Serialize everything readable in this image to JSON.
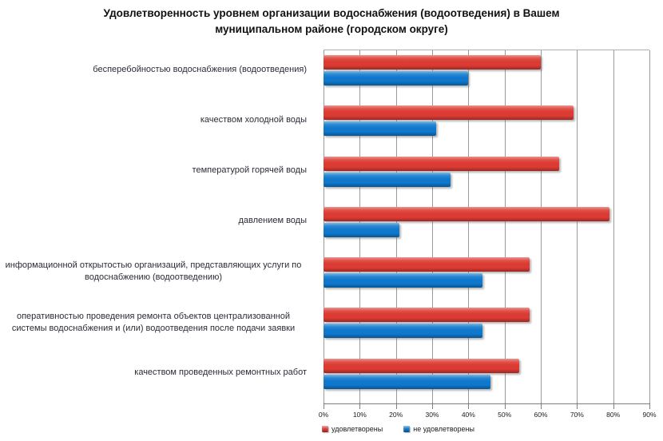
{
  "title": {
    "line1": "Удовлетворенность уровнем организации водоснабжения (водоотведения) в Вашем",
    "line2": "муниципальном районе (городском округе)"
  },
  "chart_data": {
    "type": "bar",
    "orientation": "horizontal",
    "title": "Удовлетворенность уровнем организации водоснабжения (водоотведения) в Вашем муниципальном районе (городском округе)",
    "categories": [
      "бесперебойностью водоснабжения (водоотведения)",
      "качеством холодной воды",
      "температурой горячей воды",
      "давлением воды",
      "информационной открытостью организаций, представляющих услуги по водоснабжению (водоотведению)",
      "оперативностью проведения ремонта объектов централизованной системы водоснабжения и (или) водоотведения после подачи заявки",
      "качеством проведенных ремонтных работ"
    ],
    "series": [
      {
        "name": "удовлетворены",
        "color": "#dc3b33",
        "values": [
          60,
          69,
          65,
          79,
          57,
          57,
          54
        ]
      },
      {
        "name": "не удовлетворены",
        "color": "#0f78cc",
        "values": [
          40,
          31,
          35,
          21,
          44,
          44,
          46
        ]
      }
    ],
    "xlim": [
      0,
      90
    ],
    "x_ticks": [
      "0%",
      "10%",
      "20%",
      "30%",
      "40%",
      "50%",
      "60%",
      "70%",
      "80%",
      "90%"
    ],
    "grid": true,
    "legend_position": "bottom"
  }
}
